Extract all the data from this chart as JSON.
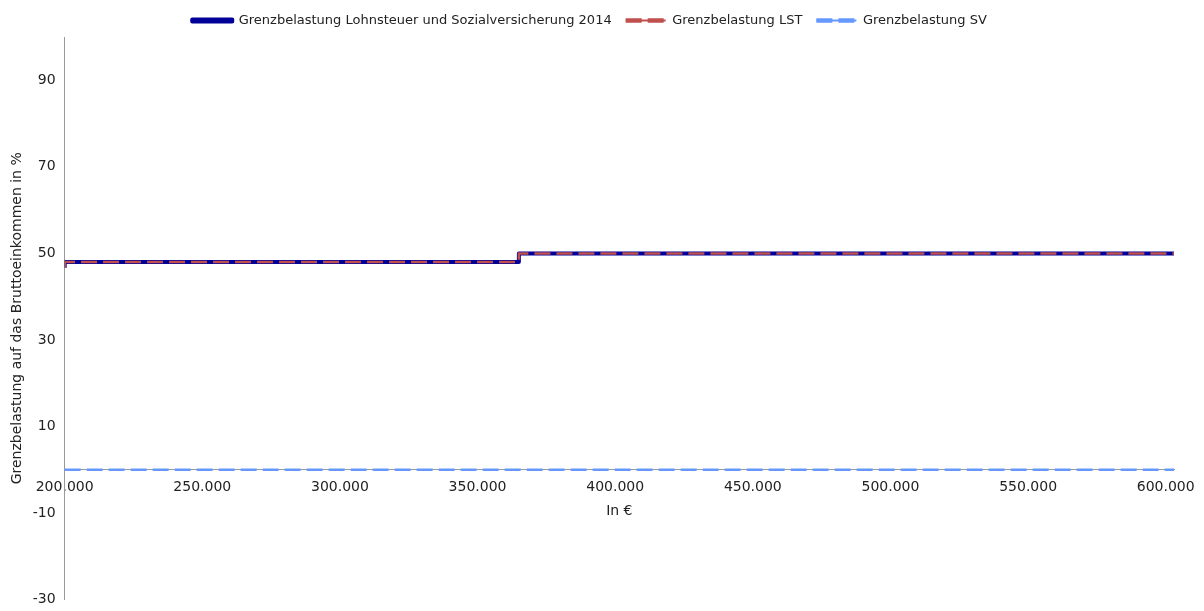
{
  "chart_data": {
    "type": "step",
    "xlabel": "In €",
    "ylabel": "Grenzbelastung auf das Bruttoeinkommen in %",
    "xlim": [
      200000,
      603000
    ],
    "xticks": [
      {
        "value": 200000,
        "label": "200.000"
      },
      {
        "value": 250000,
        "label": "250.000"
      },
      {
        "value": 300000,
        "label": "300.000"
      },
      {
        "value": 350000,
        "label": "350.000"
      },
      {
        "value": 400000,
        "label": "400.000"
      },
      {
        "value": 450000,
        "label": "450.000"
      },
      {
        "value": 500000,
        "label": "500.000"
      },
      {
        "value": 550000,
        "label": "550.000"
      },
      {
        "value": 600000,
        "label": "600.000"
      }
    ],
    "ylim": [
      -30,
      100
    ],
    "yticks": [
      -30,
      -10,
      10,
      30,
      50,
      70,
      90
    ],
    "grid": false,
    "legend": "top",
    "marker": "none",
    "series": [
      {
        "name": "Grenzbelastung Lohnsteuer und Sozialversicherung 2014",
        "color": "#000099",
        "line_style": "solid",
        "x": [
          200000,
          365000,
          598500,
          603000
        ],
        "values": [
          46.7,
          48,
          50,
          50
        ]
      },
      {
        "name": "Grenzbelastung LST",
        "color": "#c0504d",
        "line_style": "dashed",
        "x": [
          200000,
          365000,
          598500,
          603000
        ],
        "values": [
          46.7,
          48,
          50,
          50
        ]
      },
      {
        "name": "Grenzbelastung SV",
        "color": "#6699ff",
        "line_style": "dashed",
        "x": [
          200000,
          603000
        ],
        "values": [
          0,
          0
        ]
      }
    ]
  }
}
